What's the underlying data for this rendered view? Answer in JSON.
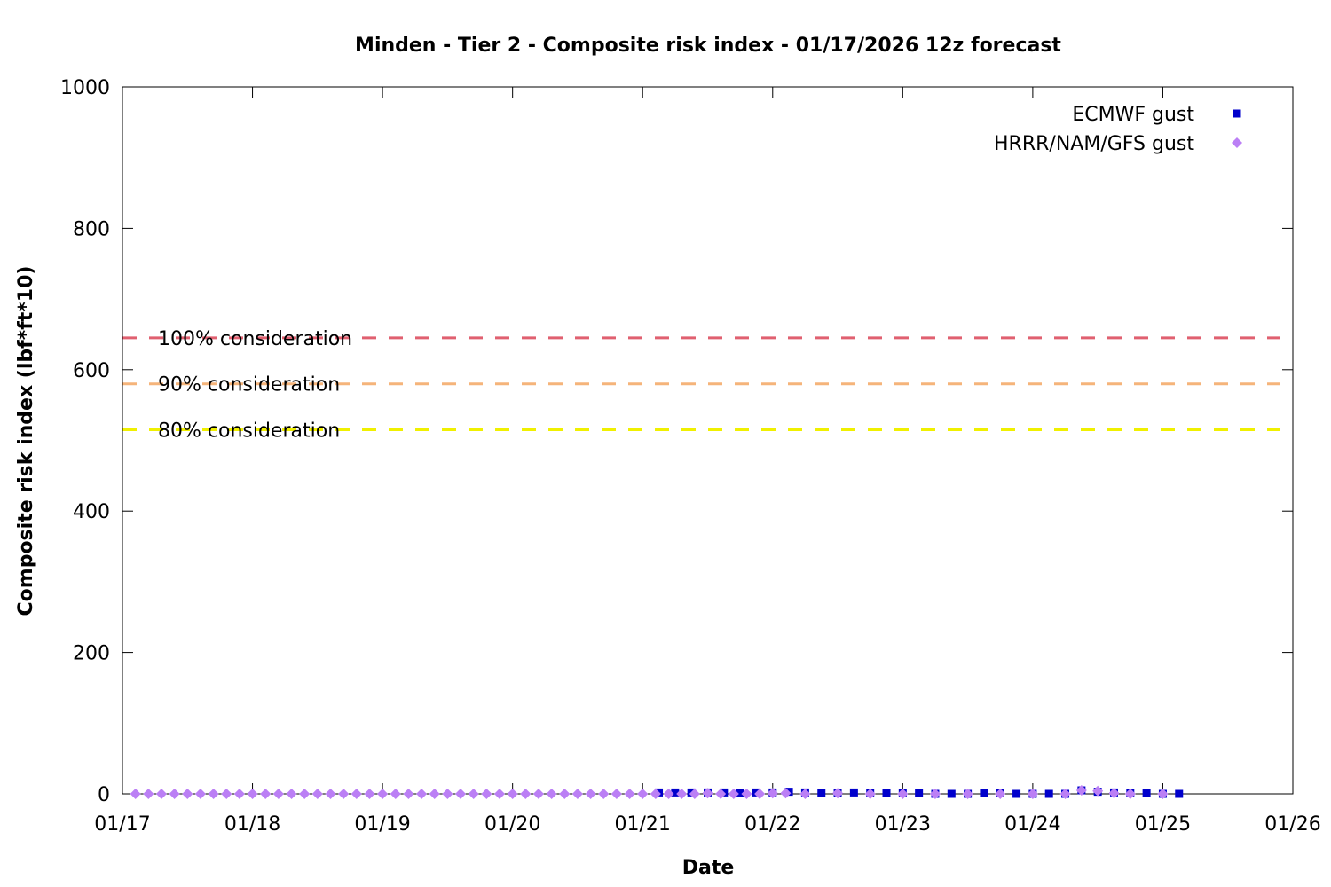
{
  "chart_data": {
    "type": "scatter",
    "title": "Minden - Tier 2 - Composite risk index - 01/17/2026 12z forecast",
    "xlabel": "Date",
    "ylabel": "Composite risk index (lbf*ft*10)",
    "x_start": "2026-01-17",
    "x_ticks": [
      "01/17",
      "01/18",
      "01/19",
      "01/20",
      "01/21",
      "01/22",
      "01/23",
      "01/24",
      "01/25",
      "01/26"
    ],
    "x_tick_days": [
      0,
      1,
      2,
      3,
      4,
      5,
      6,
      7,
      8,
      9
    ],
    "xlim_days": [
      0,
      9
    ],
    "ylim": [
      0,
      1000
    ],
    "y_ticks": [
      0,
      200,
      400,
      600,
      800,
      1000
    ],
    "legend_position": "top-right",
    "grid": false,
    "thresholds": [
      {
        "label": "100% consideration",
        "value": 645,
        "color": "#e06070"
      },
      {
        "label": "90% consideration",
        "value": 580,
        "color": "#f5b47a"
      },
      {
        "label": "80% consideration",
        "value": 515,
        "color": "#f0f000"
      }
    ],
    "series": [
      {
        "name": "ECMWF gust",
        "marker": "square",
        "color": "#0000cc",
        "points": [
          {
            "x": 4.125,
            "y": 2
          },
          {
            "x": 4.25,
            "y": 2
          },
          {
            "x": 4.375,
            "y": 2
          },
          {
            "x": 4.5,
            "y": 2
          },
          {
            "x": 4.625,
            "y": 2
          },
          {
            "x": 4.75,
            "y": 1
          },
          {
            "x": 4.875,
            "y": 2
          },
          {
            "x": 5.0,
            "y": 2
          },
          {
            "x": 5.125,
            "y": 3
          },
          {
            "x": 5.25,
            "y": 2
          },
          {
            "x": 5.375,
            "y": 1
          },
          {
            "x": 5.5,
            "y": 1
          },
          {
            "x": 5.625,
            "y": 2
          },
          {
            "x": 5.75,
            "y": 1
          },
          {
            "x": 5.875,
            "y": 1
          },
          {
            "x": 6.0,
            "y": 1
          },
          {
            "x": 6.125,
            "y": 1
          },
          {
            "x": 6.25,
            "y": 0
          },
          {
            "x": 6.375,
            "y": 0
          },
          {
            "x": 6.5,
            "y": 0
          },
          {
            "x": 6.625,
            "y": 1
          },
          {
            "x": 6.75,
            "y": 1
          },
          {
            "x": 6.875,
            "y": 0
          },
          {
            "x": 7.0,
            "y": 0
          },
          {
            "x": 7.125,
            "y": 0
          },
          {
            "x": 7.25,
            "y": 0
          },
          {
            "x": 7.375,
            "y": 5
          },
          {
            "x": 7.5,
            "y": 3
          },
          {
            "x": 7.625,
            "y": 2
          },
          {
            "x": 7.75,
            "y": 1
          },
          {
            "x": 7.875,
            "y": 1
          },
          {
            "x": 8.0,
            "y": 0
          },
          {
            "x": 8.125,
            "y": 0
          }
        ]
      },
      {
        "name": "HRRR/NAM/GFS gust",
        "marker": "diamond",
        "color": "#bb7ff5",
        "points": [
          {
            "x": 0.1,
            "y": 0
          },
          {
            "x": 0.2,
            "y": 0
          },
          {
            "x": 0.3,
            "y": 0
          },
          {
            "x": 0.4,
            "y": 0
          },
          {
            "x": 0.5,
            "y": 0
          },
          {
            "x": 0.6,
            "y": 0
          },
          {
            "x": 0.7,
            "y": 0
          },
          {
            "x": 0.8,
            "y": 0
          },
          {
            "x": 0.9,
            "y": 0
          },
          {
            "x": 1.0,
            "y": 0
          },
          {
            "x": 1.1,
            "y": 0
          },
          {
            "x": 1.2,
            "y": 0
          },
          {
            "x": 1.3,
            "y": 0
          },
          {
            "x": 1.4,
            "y": 0
          },
          {
            "x": 1.5,
            "y": 0
          },
          {
            "x": 1.6,
            "y": 0
          },
          {
            "x": 1.7,
            "y": 0
          },
          {
            "x": 1.8,
            "y": 0
          },
          {
            "x": 1.9,
            "y": 0
          },
          {
            "x": 2.0,
            "y": 0
          },
          {
            "x": 2.1,
            "y": 0
          },
          {
            "x": 2.2,
            "y": 0
          },
          {
            "x": 2.3,
            "y": 0
          },
          {
            "x": 2.4,
            "y": 0
          },
          {
            "x": 2.5,
            "y": 0
          },
          {
            "x": 2.6,
            "y": 0
          },
          {
            "x": 2.7,
            "y": 0
          },
          {
            "x": 2.8,
            "y": 0
          },
          {
            "x": 2.9,
            "y": 0
          },
          {
            "x": 3.0,
            "y": 0
          },
          {
            "x": 3.1,
            "y": 0
          },
          {
            "x": 3.2,
            "y": 0
          },
          {
            "x": 3.3,
            "y": 0
          },
          {
            "x": 3.4,
            "y": 0
          },
          {
            "x": 3.5,
            "y": 0
          },
          {
            "x": 3.6,
            "y": 0
          },
          {
            "x": 3.7,
            "y": 0
          },
          {
            "x": 3.8,
            "y": 0
          },
          {
            "x": 3.9,
            "y": 0
          },
          {
            "x": 4.0,
            "y": 0
          },
          {
            "x": 4.1,
            "y": 0
          },
          {
            "x": 4.2,
            "y": 0
          },
          {
            "x": 4.3,
            "y": 0
          },
          {
            "x": 4.4,
            "y": 0
          },
          {
            "x": 4.5,
            "y": 1
          },
          {
            "x": 4.6,
            "y": 0
          },
          {
            "x": 4.7,
            "y": 0
          },
          {
            "x": 4.8,
            "y": 0
          },
          {
            "x": 4.9,
            "y": 0
          },
          {
            "x": 5.0,
            "y": 1
          },
          {
            "x": 5.1,
            "y": 1
          },
          {
            "x": 5.25,
            "y": 0
          },
          {
            "x": 5.5,
            "y": 1
          },
          {
            "x": 5.75,
            "y": 0
          },
          {
            "x": 6.0,
            "y": 0
          },
          {
            "x": 6.25,
            "y": 0
          },
          {
            "x": 6.5,
            "y": 0
          },
          {
            "x": 6.75,
            "y": 0
          },
          {
            "x": 7.0,
            "y": 0
          },
          {
            "x": 7.25,
            "y": 0
          },
          {
            "x": 7.375,
            "y": 5
          },
          {
            "x": 7.5,
            "y": 4
          },
          {
            "x": 7.625,
            "y": 1
          },
          {
            "x": 7.75,
            "y": 0
          },
          {
            "x": 8.0,
            "y": 0
          }
        ]
      }
    ]
  }
}
